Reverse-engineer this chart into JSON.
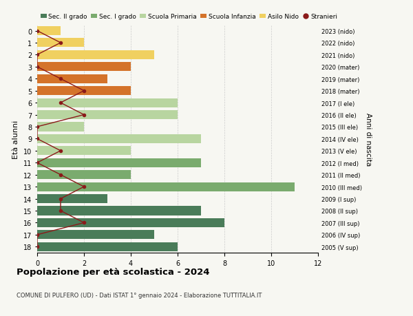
{
  "ages": [
    18,
    17,
    16,
    15,
    14,
    13,
    12,
    11,
    10,
    9,
    8,
    7,
    6,
    5,
    4,
    3,
    2,
    1,
    0
  ],
  "right_labels": [
    "2005 (V sup)",
    "2006 (IV sup)",
    "2007 (III sup)",
    "2008 (II sup)",
    "2009 (I sup)",
    "2010 (III med)",
    "2011 (II med)",
    "2012 (I med)",
    "2013 (V ele)",
    "2014 (IV ele)",
    "2015 (III ele)",
    "2016 (II ele)",
    "2017 (I ele)",
    "2018 (mater)",
    "2019 (mater)",
    "2020 (mater)",
    "2021 (nido)",
    "2022 (nido)",
    "2023 (nido)"
  ],
  "bar_values": [
    6,
    5,
    8,
    7,
    3,
    11,
    4,
    7,
    4,
    7,
    2,
    6,
    6,
    4,
    3,
    4,
    5,
    2,
    1
  ],
  "bar_colors": [
    "#4a7c59",
    "#4a7c59",
    "#4a7c59",
    "#4a7c59",
    "#4a7c59",
    "#7aab6e",
    "#7aab6e",
    "#7aab6e",
    "#b8d5a0",
    "#b8d5a0",
    "#b8d5a0",
    "#b8d5a0",
    "#b8d5a0",
    "#d4732a",
    "#d4732a",
    "#d4732a",
    "#f0d060",
    "#f0d060",
    "#f0d060"
  ],
  "stranieri_values": [
    0,
    0,
    2,
    1,
    1,
    2,
    1,
    0,
    1,
    0,
    0,
    2,
    1,
    2,
    1,
    0,
    0,
    1,
    0
  ],
  "stranieri_color": "#8b1a1a",
  "legend_labels": [
    "Sec. II grado",
    "Sec. I grado",
    "Scuola Primaria",
    "Scuola Infanzia",
    "Asilo Nido",
    "Stranieri"
  ],
  "legend_colors": [
    "#4a7c59",
    "#7aab6e",
    "#b8d5a0",
    "#d4732a",
    "#f0d060",
    "#8b1a1a"
  ],
  "title": "Popolazione per età scolastica - 2024",
  "subtitle": "COMUNE DI PULFERO (UD) - Dati ISTAT 1° gennaio 2024 - Elaborazione TUTTITALIA.IT",
  "ylabel": "Età alunni",
  "ylabel_right": "Anni di nascita",
  "xlim": [
    0,
    12
  ],
  "xticks": [
    0,
    2,
    4,
    6,
    8,
    10,
    12
  ],
  "background_color": "#f7f7f2",
  "grid_color": "#cccccc"
}
